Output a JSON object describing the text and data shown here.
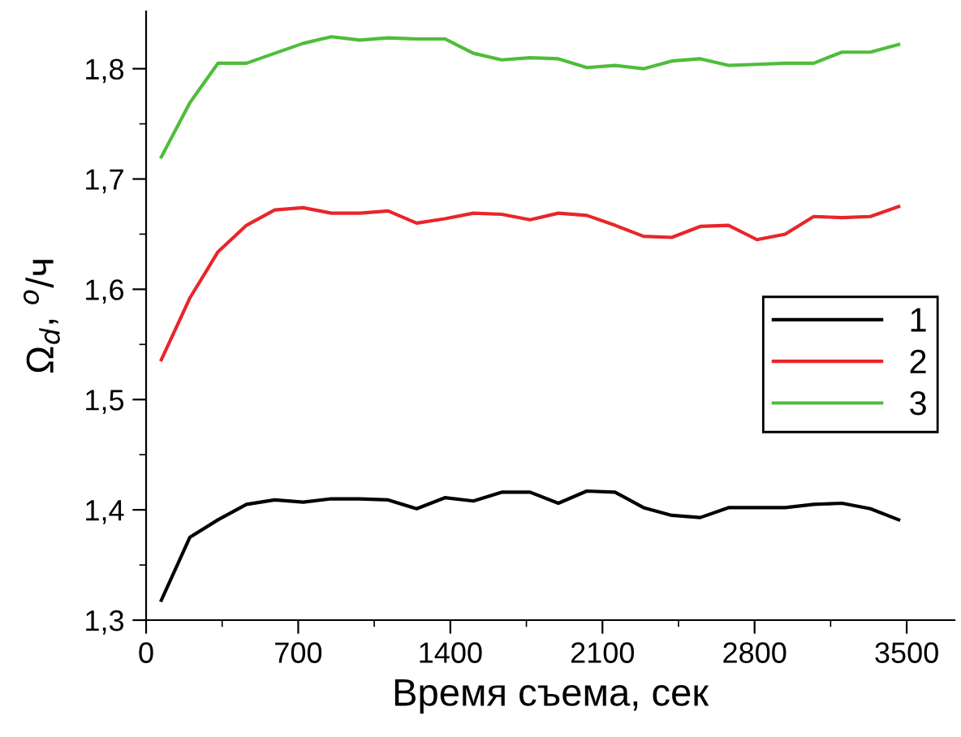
{
  "chart_data": {
    "type": "line",
    "xlabel": "Время съема, сек",
    "ylabel": "Ω$_{d}$, $^{o}$/ч",
    "x": [
      70,
      201,
      331,
      462,
      592,
      723,
      853,
      984,
      1114,
      1245,
      1375,
      1506,
      1636,
      1767,
      1897,
      2028,
      2158,
      2289,
      2419,
      2550,
      2680,
      2811,
      2941,
      3072,
      3202,
      3333,
      3463
    ],
    "series": [
      {
        "name": "1",
        "color": "#000000",
        "values": [
          1.318,
          1.375,
          1.391,
          1.405,
          1.409,
          1.407,
          1.41,
          1.41,
          1.409,
          1.401,
          1.411,
          1.408,
          1.416,
          1.416,
          1.406,
          1.417,
          1.416,
          1.402,
          1.395,
          1.393,
          1.402,
          1.402,
          1.402,
          1.405,
          1.406,
          1.401,
          1.391
        ]
      },
      {
        "name": "2",
        "color": "#e8262a",
        "values": [
          1.536,
          1.592,
          1.634,
          1.658,
          1.672,
          1.674,
          1.669,
          1.669,
          1.671,
          1.66,
          1.664,
          1.669,
          1.668,
          1.663,
          1.669,
          1.667,
          1.658,
          1.648,
          1.647,
          1.657,
          1.658,
          1.645,
          1.65,
          1.666,
          1.665,
          1.666,
          1.675
        ]
      },
      {
        "name": "3",
        "color": "#4fbd3a",
        "values": [
          1.72,
          1.769,
          1.805,
          1.805,
          1.814,
          1.823,
          1.829,
          1.826,
          1.828,
          1.827,
          1.827,
          1.814,
          1.808,
          1.81,
          1.809,
          1.801,
          1.803,
          1.8,
          1.807,
          1.809,
          1.803,
          1.804,
          1.805,
          1.805,
          1.815,
          1.815,
          1.822
        ]
      }
    ],
    "xlim": [
      0,
      3720
    ],
    "ylim": [
      1.3,
      1.852
    ],
    "xticks": [
      0,
      {
        "value": 350,
        "label": null
      },
      700,
      {
        "value": 1050,
        "label": null
      },
      1400,
      {
        "value": 1750,
        "label": null
      },
      2100,
      {
        "value": 2450,
        "label": null
      },
      2800,
      {
        "value": 3150,
        "label": null
      },
      3500
    ],
    "yticks": [
      {
        "value": 1.3,
        "label": "1,3"
      },
      {
        "value": 1.35,
        "label": null
      },
      {
        "value": 1.4,
        "label": "1,4"
      },
      {
        "value": 1.45,
        "label": null
      },
      {
        "value": 1.5,
        "label": "1,5"
      },
      {
        "value": 1.55,
        "label": null
      },
      {
        "value": 1.6,
        "label": "1,6"
      },
      {
        "value": 1.65,
        "label": null
      },
      {
        "value": 1.7,
        "label": "1,7"
      },
      {
        "value": 1.75,
        "label": null
      },
      {
        "value": 1.8,
        "label": "1,8"
      }
    ],
    "legend": "right",
    "grid": false,
    "marker": "none",
    "line_style": "solid"
  }
}
